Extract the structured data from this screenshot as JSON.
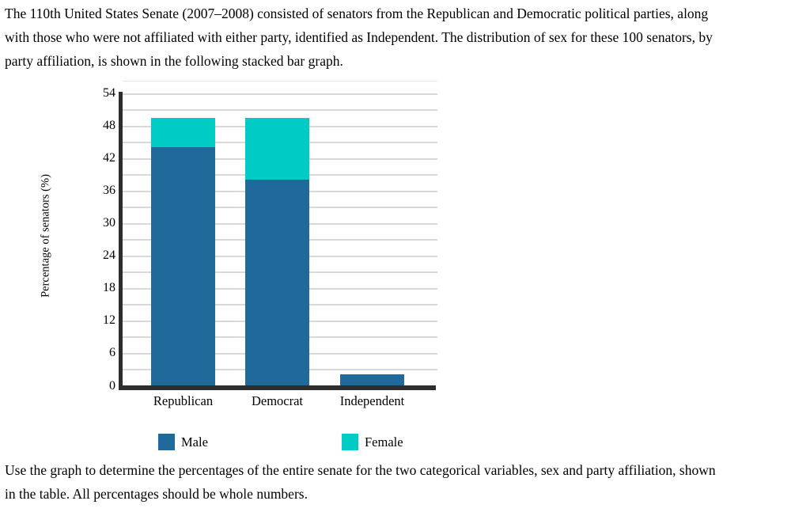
{
  "intro": {
    "lines": [
      "The 110th United States Senate (2007–2008) consisted of senators from the Republican and Democratic political parties, along",
      "with those who were not affiliated with either party, identified as Independent. The distribution of sex for these 100 senators, by",
      "party affiliation, is shown in the following stacked bar graph."
    ]
  },
  "footer": {
    "lines": [
      "Use the graph to determine the percentages of the entire senate for the two categorical variables, sex and party affiliation, shown",
      "in the table. All percentages should be whole numbers."
    ]
  },
  "chart_data": {
    "type": "bar",
    "stacked": true,
    "title": "",
    "categories": [
      "Republican",
      "Democrat",
      "Independent"
    ],
    "series": [
      {
        "name": "Male",
        "color": "#20699b",
        "values": [
          44,
          38,
          2
        ]
      },
      {
        "name": "Female",
        "color": "#00ccc5",
        "values": [
          5.5,
          11.5,
          0
        ]
      }
    ],
    "xlabel": "",
    "ylabel": "Percentage of senators (%)",
    "ylim": [
      0,
      56.4
    ],
    "yticks_labeled": [
      0,
      6,
      12,
      18,
      24,
      30,
      36,
      42,
      48,
      54
    ],
    "ytick_grid_interval": 3,
    "grid": "horizontal",
    "gridline_color": "#d9d9d9",
    "axis_color": "#2d2d2d",
    "legend_position": "below"
  }
}
